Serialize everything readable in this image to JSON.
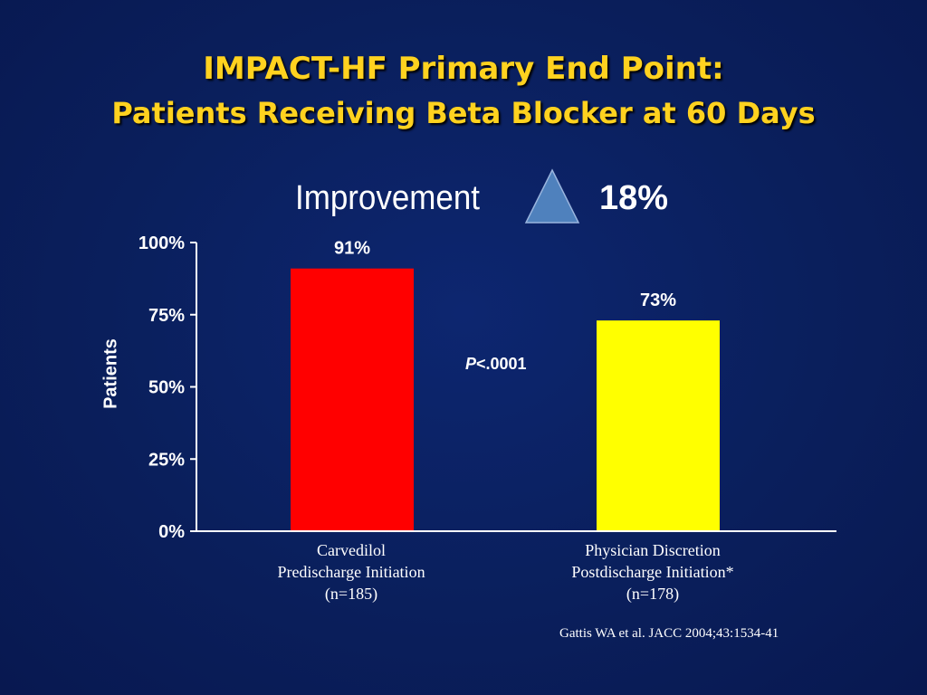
{
  "slide": {
    "title_line1": "IMPACT-HF Primary End Point:",
    "title_line2": "Patients Receiving Beta Blocker at 60 Days",
    "improvement_label": "Improvement",
    "improvement_value": "18%",
    "p_value_prefix": "P",
    "p_value_rest": "<.0001",
    "citation": "Gattis WA et al. JACC 2004;43:1534-41"
  },
  "chart_data": {
    "type": "bar",
    "ylabel": "Patients",
    "ylim": [
      0,
      100
    ],
    "yticks": [
      0,
      25,
      50,
      75,
      100
    ],
    "ytick_labels": [
      "0%",
      "25%",
      "50%",
      "75%",
      "100%"
    ],
    "categories": [
      "Carvedilol Predischarge Initiation (n=185)",
      "Physician Discretion Postdischarge Initiation* (n=178)"
    ],
    "category_lines": [
      [
        "Carvedilol",
        "Predischarge Initiation",
        "(n=185)"
      ],
      [
        "Physician Discretion",
        "Postdischarge Initiation*",
        "(n=178)"
      ]
    ],
    "values": [
      91,
      73
    ],
    "value_labels": [
      "91%",
      "73%"
    ],
    "colors": [
      "#ff0000",
      "#ffff00"
    ],
    "grid": false
  },
  "colors": {
    "background": "#0a1f5c",
    "title": "#ffd21f",
    "triangle": "#4f81bd"
  }
}
